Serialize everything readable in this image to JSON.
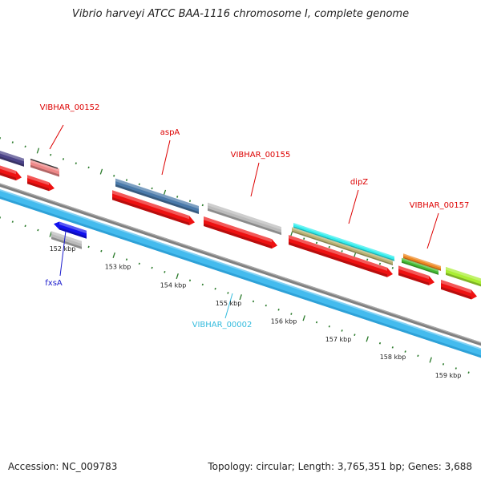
{
  "title": "Vibrio harveyi ATCC BAA-1116 chromosome I, complete genome",
  "footer": {
    "accession": "Accession: NC_009783",
    "summary": "Topology: circular; Length: 3,765,351 bp; Genes: 3,688"
  },
  "colors": {
    "cds": "#ee1111",
    "label_red": "#dd0000",
    "label_blue": "#1a1acc",
    "label_cyan": "#33bbdd",
    "tick": "#2a7a2a",
    "backbone": "#808080",
    "gc_band": "#44bbee",
    "dark_purple": "#4c4488",
    "pink": "#ee8888",
    "steel_blue": "#4a7aaa",
    "light_gray": "#bbbbbb",
    "cyan": "#33eeee",
    "tan": "#b8b070",
    "orange": "#ee8822",
    "green": "#44bb33",
    "lime": "#aaee33",
    "blue": "#1111ee"
  },
  "gene_labels": [
    {
      "id": "vibhar-00152",
      "text": "VIBHAR_00152",
      "color": "#dd0000"
    },
    {
      "id": "aspa",
      "text": "aspA",
      "color": "#dd0000"
    },
    {
      "id": "vibhar-00155",
      "text": "VIBHAR_00155",
      "color": "#dd0000"
    },
    {
      "id": "dipz",
      "text": "dipZ",
      "color": "#dd0000"
    },
    {
      "id": "vibhar-00157",
      "text": "VIBHAR_00157",
      "color": "#dd0000"
    },
    {
      "id": "fxsa",
      "text": "fxsA",
      "color": "#1a1acc"
    },
    {
      "id": "vibhar-00002",
      "text": "VIBHAR_00002",
      "color": "#33bbdd"
    }
  ],
  "scale_labels": [
    "152 kbp",
    "153 kbp",
    "154 kbp",
    "155 kbp",
    "156 kbp",
    "157 kbp",
    "158 kbp",
    "159 kbp"
  ]
}
